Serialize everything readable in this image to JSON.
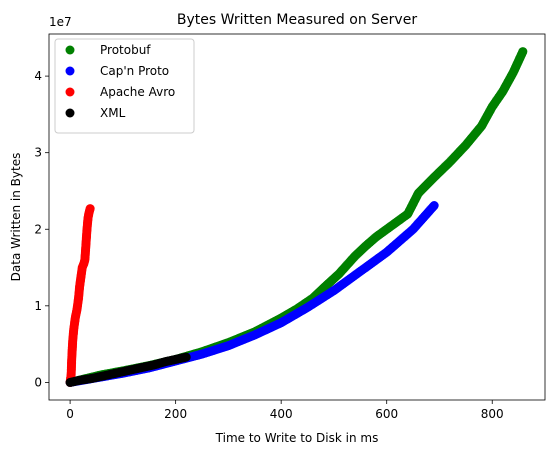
{
  "chart_data": {
    "type": "scatter",
    "title": "Bytes Written Measured on Server",
    "xlabel": "Time to Write to Disk in ms",
    "ylabel": "Data Written in Bytes",
    "y_offset_label": "1e7",
    "xlim": [
      -40,
      900
    ],
    "ylim": [
      -2300000,
      45500000
    ],
    "x_ticks": [
      0,
      200,
      400,
      600,
      800
    ],
    "x_tick_labels": [
      "0",
      "200",
      "400",
      "600",
      "800"
    ],
    "y_ticks": [
      0,
      10000000,
      20000000,
      30000000,
      40000000
    ],
    "y_tick_labels": [
      "0",
      "1",
      "2",
      "3",
      "4"
    ],
    "legend_position": "top-left",
    "grid": false,
    "series": [
      {
        "name": "Protobuf",
        "color": "#008000",
        "points": [
          [
            0,
            0
          ],
          [
            30,
            500000
          ],
          [
            60,
            1000000
          ],
          [
            100,
            1500000
          ],
          [
            150,
            2200000
          ],
          [
            200,
            3000000
          ],
          [
            250,
            4000000
          ],
          [
            300,
            5200000
          ],
          [
            350,
            6600000
          ],
          [
            400,
            8400000
          ],
          [
            430,
            9600000
          ],
          [
            460,
            11000000
          ],
          [
            480,
            12300000
          ],
          [
            510,
            14200000
          ],
          [
            540,
            16500000
          ],
          [
            560,
            17800000
          ],
          [
            580,
            19000000
          ],
          [
            600,
            20000000
          ],
          [
            620,
            21000000
          ],
          [
            640,
            22000000
          ],
          [
            660,
            24700000
          ],
          [
            690,
            26800000
          ],
          [
            720,
            28800000
          ],
          [
            750,
            31000000
          ],
          [
            780,
            33500000
          ],
          [
            800,
            36000000
          ],
          [
            820,
            38000000
          ],
          [
            840,
            40500000
          ],
          [
            858,
            43200000
          ]
        ]
      },
      {
        "name": "Cap'n Proto",
        "color": "#0000ff",
        "points": [
          [
            0,
            0
          ],
          [
            50,
            600000
          ],
          [
            100,
            1200000
          ],
          [
            150,
            1900000
          ],
          [
            200,
            2800000
          ],
          [
            250,
            3700000
          ],
          [
            300,
            4800000
          ],
          [
            350,
            6200000
          ],
          [
            400,
            7800000
          ],
          [
            450,
            9800000
          ],
          [
            500,
            12000000
          ],
          [
            550,
            14500000
          ],
          [
            600,
            17000000
          ],
          [
            650,
            20000000
          ],
          [
            690,
            23100000
          ]
        ]
      },
      {
        "name": "Apache Avro",
        "color": "#ff0000",
        "points": [
          [
            0,
            0
          ],
          [
            2,
            1000000
          ],
          [
            3,
            3000000
          ],
          [
            5,
            5500000
          ],
          [
            7,
            7000000
          ],
          [
            10,
            8500000
          ],
          [
            13,
            9500000
          ],
          [
            16,
            11000000
          ],
          [
            18,
            12500000
          ],
          [
            20,
            13500000
          ],
          [
            23,
            15000000
          ],
          [
            26,
            15500000
          ],
          [
            28,
            16000000
          ],
          [
            30,
            18000000
          ],
          [
            32,
            20000000
          ],
          [
            34,
            21500000
          ],
          [
            36,
            22200000
          ],
          [
            38,
            22700000
          ]
        ]
      },
      {
        "name": "XML",
        "color": "#000000",
        "points": [
          [
            0,
            0
          ],
          [
            20,
            300000
          ],
          [
            40,
            500000
          ],
          [
            60,
            800000
          ],
          [
            80,
            1100000
          ],
          [
            100,
            1400000
          ],
          [
            120,
            1700000
          ],
          [
            140,
            2000000
          ],
          [
            160,
            2300000
          ],
          [
            180,
            2700000
          ],
          [
            200,
            3000000
          ],
          [
            220,
            3300000
          ]
        ]
      }
    ]
  }
}
